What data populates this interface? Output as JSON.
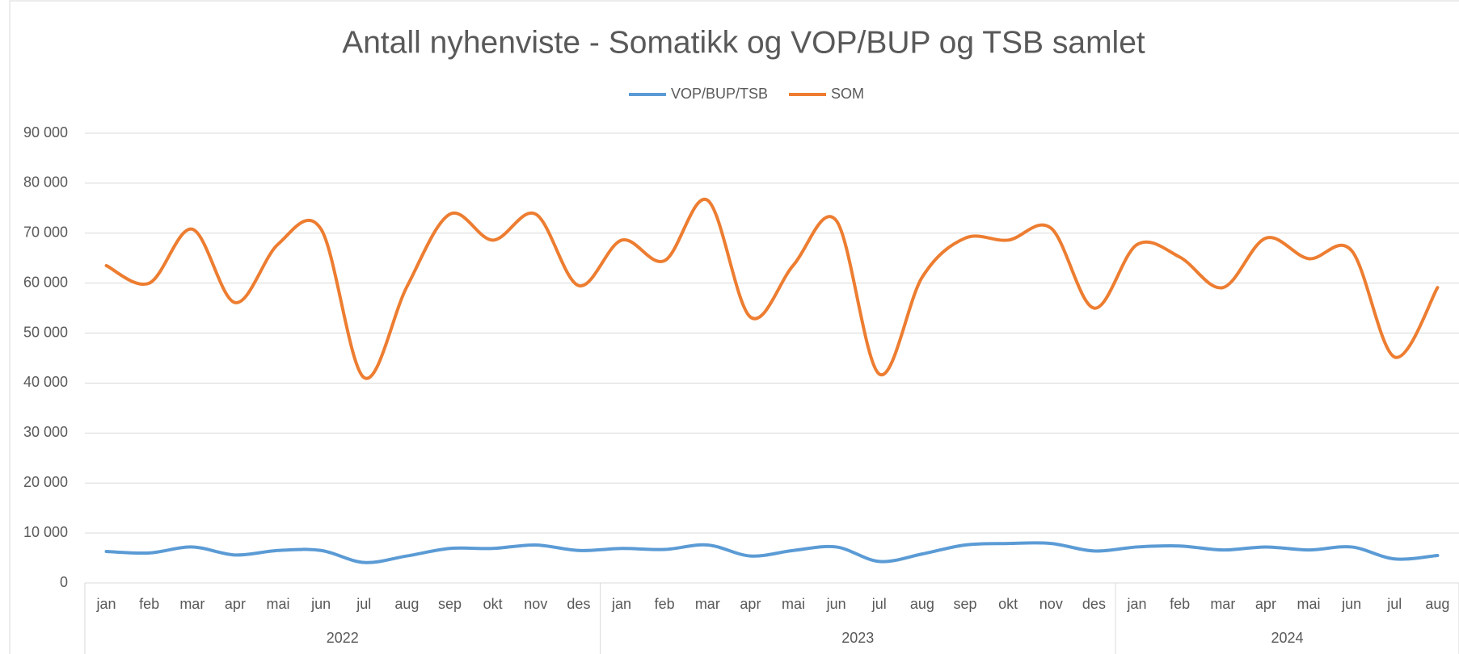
{
  "chart_data": {
    "type": "line",
    "title": "Antall nyhenviste - Somatikk og VOP/BUP og TSB samlet",
    "categories": [
      "jan",
      "feb",
      "mar",
      "apr",
      "mai",
      "jun",
      "jul",
      "aug",
      "sep",
      "okt",
      "nov",
      "des",
      "jan",
      "feb",
      "mar",
      "apr",
      "mai",
      "jun",
      "jul",
      "aug",
      "sep",
      "okt",
      "nov",
      "des",
      "jan",
      "feb",
      "mar",
      "apr",
      "mai",
      "jun",
      "jul",
      "aug"
    ],
    "category_groups": [
      {
        "label": "2022",
        "count": 12
      },
      {
        "label": "2023",
        "count": 12
      },
      {
        "label": "2024",
        "count": 8
      }
    ],
    "series": [
      {
        "name": "VOP/BUP/TSB",
        "color": "#5b9bd5",
        "values": [
          6300,
          6000,
          7200,
          5600,
          6500,
          6500,
          4100,
          5400,
          6900,
          6900,
          7600,
          6500,
          6900,
          6700,
          7600,
          5400,
          6500,
          7200,
          4300,
          5800,
          7600,
          7900,
          7900,
          6400,
          7200,
          7400,
          6600,
          7200,
          6600,
          7200,
          4800,
          5500
        ]
      },
      {
        "name": "SOM",
        "color": "#ed7d31",
        "values": [
          63500,
          60000,
          70800,
          56100,
          67800,
          70800,
          41100,
          59300,
          73800,
          68600,
          73800,
          59500,
          68600,
          64500,
          76600,
          53200,
          63600,
          72500,
          41800,
          61200,
          69000,
          68600,
          71000,
          55000,
          67700,
          65200,
          59100,
          69000,
          64900,
          66500,
          45200,
          59100
        ]
      }
    ],
    "ylim": [
      0,
      90000
    ],
    "yticks": [
      0,
      {
        "value": 10000,
        "label": "10 000"
      },
      {
        "value": 20000,
        "label": "20 000"
      },
      {
        "value": 30000,
        "label": "30 000"
      },
      {
        "value": 40000,
        "label": "40 000"
      },
      {
        "value": 50000,
        "label": "50 000"
      },
      {
        "value": 60000,
        "label": "60 000"
      },
      {
        "value": 70000,
        "label": "70 000"
      },
      {
        "value": 80000,
        "label": "80 000"
      },
      {
        "value": 90000,
        "label": "90 000"
      }
    ],
    "grid": true,
    "smooth": true,
    "legend": "top"
  }
}
